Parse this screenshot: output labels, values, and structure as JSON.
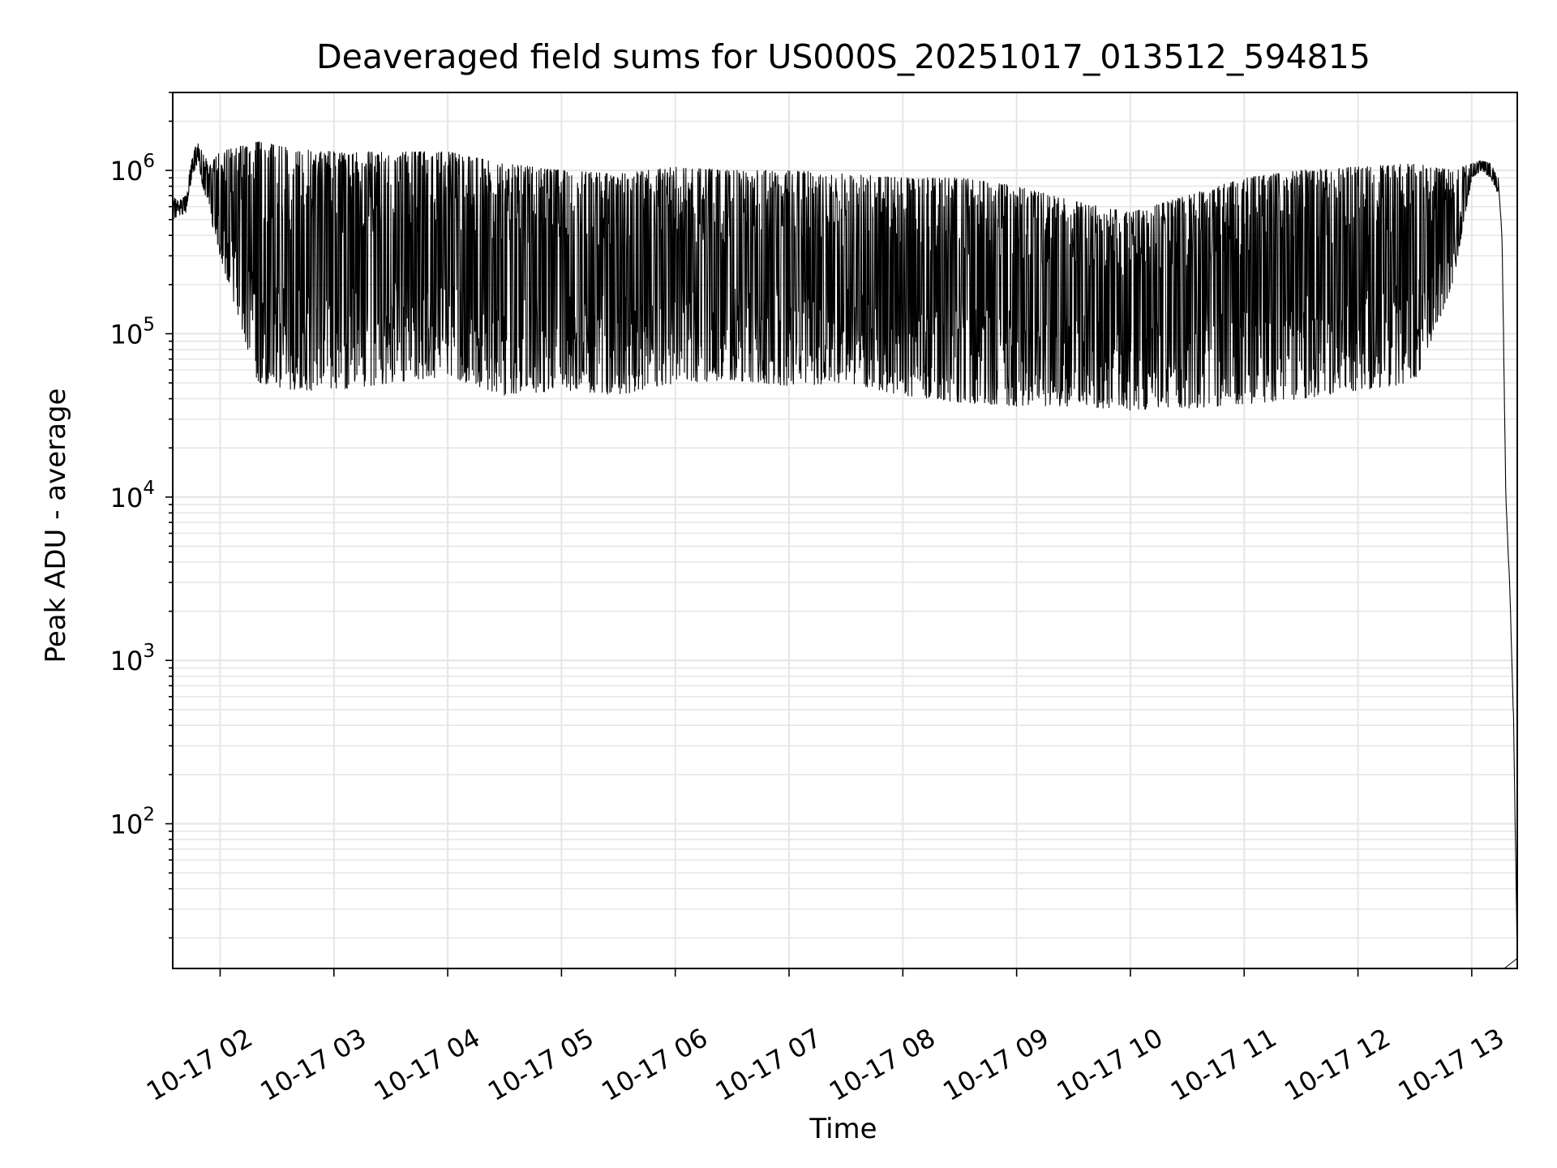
{
  "chart_data": {
    "type": "line",
    "title": "Deaveraged field sums for US000S_20251017_013512_594815",
    "xlabel": "Time",
    "ylabel": "Peak ADU - average",
    "x_unit": "hours",
    "xlim": [
      "2025-10-17 01:35",
      "2025-10-17 13:24"
    ],
    "ylim": [
      13,
      3000000
    ],
    "yscale": "log",
    "grid": true,
    "line_color": "#000000",
    "grid_color": "#e6e6e6",
    "x_ticks": [
      {
        "value": "2025-10-17 02:00",
        "label": "10-17 02"
      },
      {
        "value": "2025-10-17 03:00",
        "label": "10-17 03"
      },
      {
        "value": "2025-10-17 04:00",
        "label": "10-17 04"
      },
      {
        "value": "2025-10-17 05:00",
        "label": "10-17 05"
      },
      {
        "value": "2025-10-17 06:00",
        "label": "10-17 06"
      },
      {
        "value": "2025-10-17 07:00",
        "label": "10-17 07"
      },
      {
        "value": "2025-10-17 08:00",
        "label": "10-17 08"
      },
      {
        "value": "2025-10-17 09:00",
        "label": "10-17 09"
      },
      {
        "value": "2025-10-17 10:00",
        "label": "10-17 10"
      },
      {
        "value": "2025-10-17 11:00",
        "label": "10-17 11"
      },
      {
        "value": "2025-10-17 12:00",
        "label": "10-17 12"
      },
      {
        "value": "2025-10-17 13:00",
        "label": "10-17 13"
      }
    ],
    "y_ticks": [
      {
        "value": 100,
        "base": "10",
        "exp": "2"
      },
      {
        "value": 1000,
        "base": "10",
        "exp": "3"
      },
      {
        "value": 10000,
        "base": "10",
        "exp": "4"
      },
      {
        "value": 100000,
        "base": "10",
        "exp": "5"
      },
      {
        "value": 1000000,
        "base": "10",
        "exp": "6"
      }
    ],
    "series": [
      {
        "x": [
          "2025-10-17 01:35",
          "2025-10-17 01:38",
          "2025-10-17 01:42",
          "2025-10-17 01:45",
          "2025-10-17 01:48",
          "2025-10-17 01:52",
          "2025-10-17 01:55",
          "2025-10-17 02:00",
          "2025-10-17 02:10",
          "2025-10-17 02:20",
          "2025-10-17 02:40",
          "2025-10-17 03:00",
          "2025-10-17 03:30",
          "2025-10-17 04:00",
          "2025-10-17 04:30",
          "2025-10-17 05:00",
          "2025-10-17 05:30",
          "2025-10-17 06:00",
          "2025-10-17 06:30",
          "2025-10-17 07:00",
          "2025-10-17 07:30",
          "2025-10-17 08:00",
          "2025-10-17 08:30",
          "2025-10-17 09:00",
          "2025-10-17 09:30",
          "2025-10-17 10:00",
          "2025-10-17 10:30",
          "2025-10-17 11:00",
          "2025-10-17 11:30",
          "2025-10-17 12:00",
          "2025-10-17 12:30",
          "2025-10-17 12:50",
          "2025-10-17 13:00",
          "2025-10-17 13:05",
          "2025-10-17 13:10",
          "2025-10-17 13:14",
          "2025-10-17 13:16",
          "2025-10-17 13:18",
          "2025-10-17 13:20",
          "2025-10-17 13:22",
          "2025-10-17 13:24"
        ],
        "y_high": [
          700000,
          650000,
          700000,
          1200000,
          1500000,
          1200000,
          1100000,
          1300000,
          1400000,
          1500000,
          1350000,
          1300000,
          1300000,
          1300000,
          1100000,
          1000000,
          950000,
          1050000,
          1000000,
          1000000,
          950000,
          900000,
          900000,
          800000,
          650000,
          550000,
          700000,
          900000,
          1000000,
          1050000,
          1100000,
          1000000,
          1100000,
          1150000,
          1100000,
          900000,
          400000,
          10000,
          3000,
          500,
          15
        ],
        "y_low": [
          500000,
          520000,
          550000,
          900000,
          1100000,
          700000,
          500000,
          300000,
          120000,
          50000,
          45000,
          45000,
          50000,
          55000,
          42000,
          45000,
          42000,
          50000,
          52000,
          48000,
          50000,
          42000,
          38000,
          36000,
          36000,
          34000,
          35000,
          37000,
          40000,
          45000,
          50000,
          200000,
          900000,
          1000000,
          900000,
          700000,
          300000,
          8000,
          2500,
          300,
          15
        ]
      }
    ]
  }
}
